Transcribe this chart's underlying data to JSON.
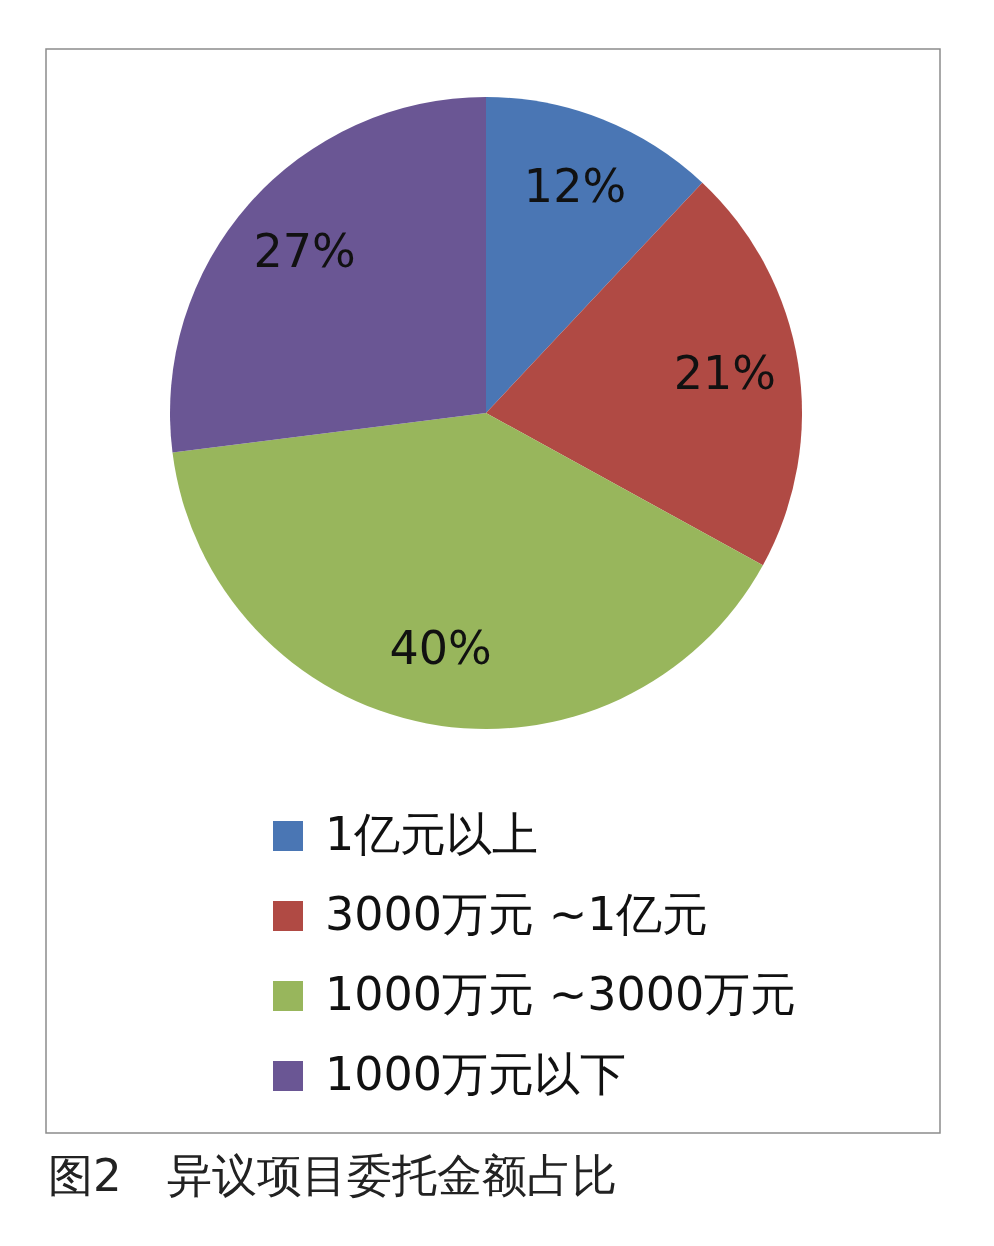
{
  "chart_data": {
    "type": "pie",
    "title": "图2　异议项目委托金额占比",
    "categories": [
      "1亿元以上",
      "3000万元 ~1亿元",
      "1000万元 ~3000万元",
      "1000万元以下"
    ],
    "values": [
      12,
      21,
      40,
      27
    ],
    "colors": [
      "#4a76b4",
      "#b04a44",
      "#98b65c",
      "#6a5694"
    ],
    "value_labels": [
      "12%",
      "21%",
      "40%",
      "27%"
    ],
    "legend": "bottom"
  }
}
